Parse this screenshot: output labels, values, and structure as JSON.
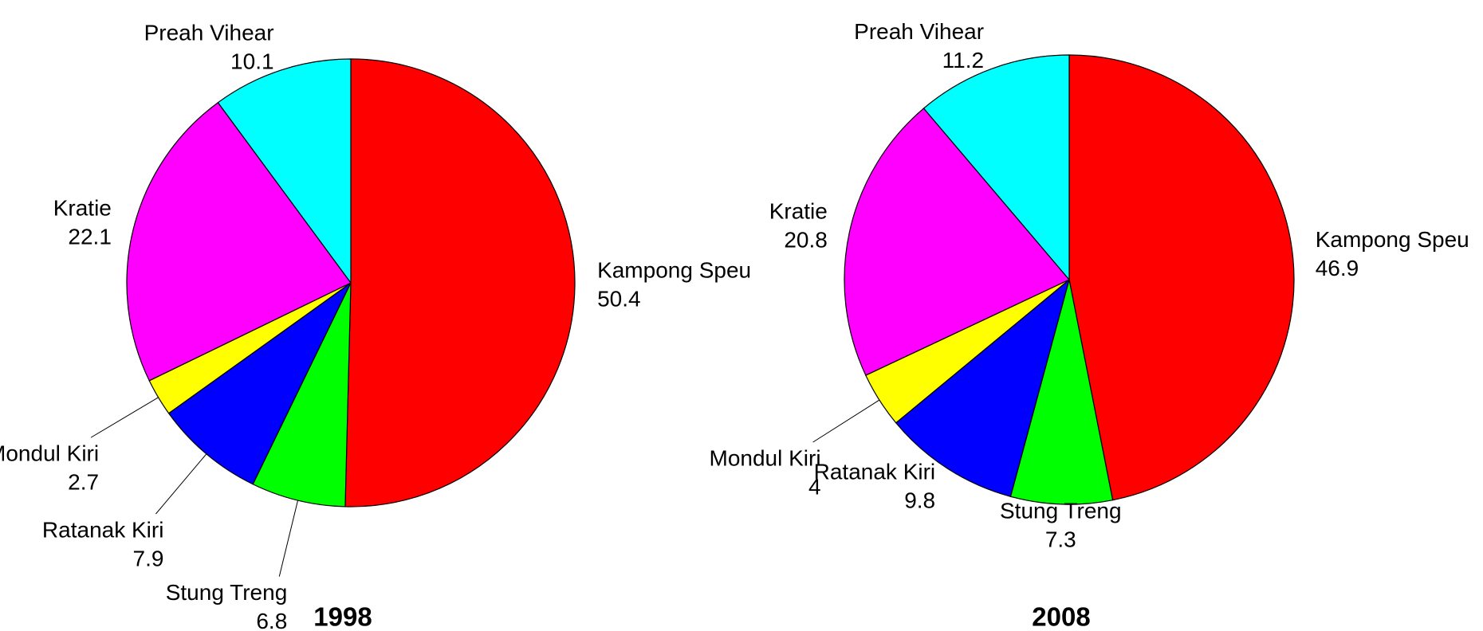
{
  "chart_data": [
    {
      "type": "pie",
      "title": "1998",
      "categories": [
        "Kampong Speu",
        "Stung Treng",
        "Ratanak Kiri",
        "Mondul Kiri",
        "Kratie",
        "Preah Vihear"
      ],
      "values": [
        50.4,
        6.8,
        7.9,
        2.7,
        22.1,
        10.1
      ],
      "colors": [
        "#ff0000",
        "#00ff00",
        "#0000ff",
        "#ffff00",
        "#ff00ff",
        "#00ffff"
      ]
    },
    {
      "type": "pie",
      "title": "2008",
      "categories": [
        "Kampong Speu",
        "Stung Treng",
        "Ratanak Kiri",
        "Mondul Kiri",
        "Kratie",
        "Preah Vihear"
      ],
      "values": [
        46.9,
        7.3,
        9.8,
        4,
        20.8,
        11.2
      ],
      "colors": [
        "#ff0000",
        "#00ff00",
        "#0000ff",
        "#ffff00",
        "#ff00ff",
        "#00ffff"
      ]
    }
  ]
}
